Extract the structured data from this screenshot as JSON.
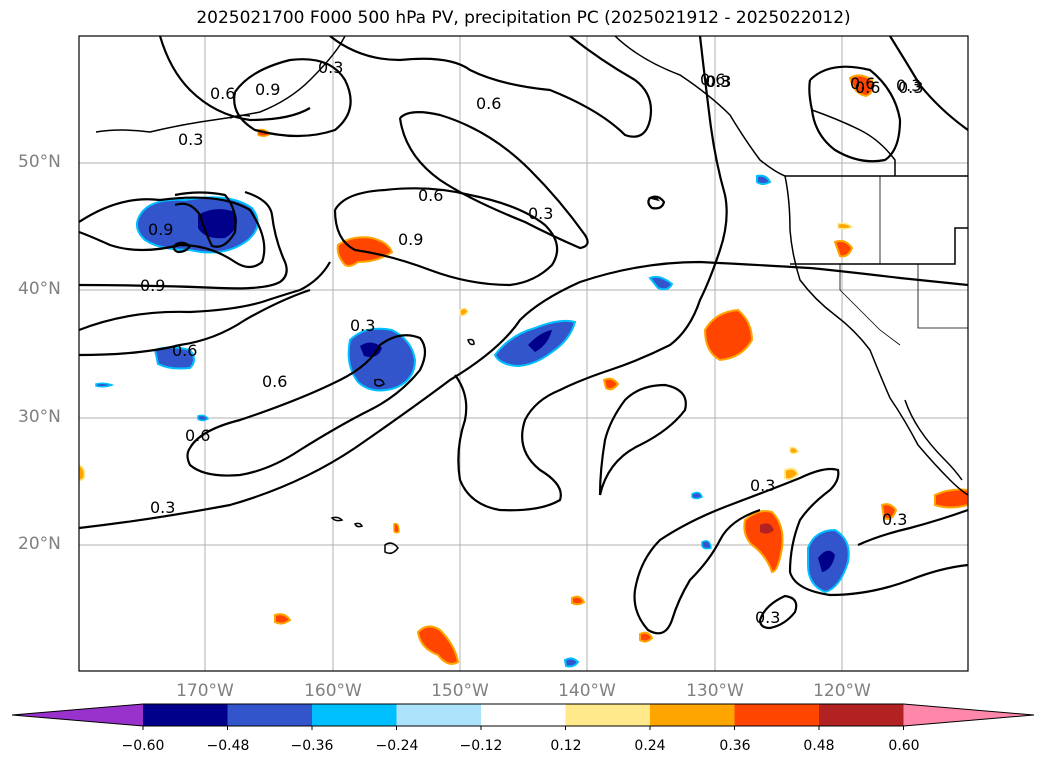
{
  "title": "2025021700 F000 500 hPa PV, precipitation PC (2025021912 - 2025022012)",
  "map": {
    "lat_labels": [
      "50°N",
      "40°N",
      "30°N",
      "20°N"
    ],
    "lon_labels": [
      "170°W",
      "160°W",
      "150°W",
      "140°W",
      "130°W",
      "120°W"
    ],
    "contour_labels": [
      "0.3",
      "0.6",
      "0.9",
      "0.3",
      "0.6",
      "0.9",
      "0.3",
      "0.6",
      "0.9",
      "0.3",
      "0.6",
      "0.6",
      "0.3",
      "0.6",
      "0.9",
      "0.3",
      "0.6",
      "0.3",
      "0.6",
      "0.3",
      "0.3",
      "0.3",
      "0.3",
      "0.6",
      "0.3"
    ],
    "pv_contour_color": "#000000",
    "coastline_color": "#000000",
    "grid_color": "#b0b0b0"
  },
  "colorbar": {
    "tick_labels": [
      "−0.60",
      "−0.48",
      "−0.36",
      "−0.24",
      "−0.12",
      "0.12",
      "0.24",
      "0.36",
      "0.48",
      "0.60"
    ],
    "colors": [
      "#9932CC",
      "#00008B",
      "#3355CC",
      "#00BFFF",
      "#ADE3FA",
      "#FFFFFF",
      "#FFE98A",
      "#FFA500",
      "#FF4500",
      "#B22222",
      "#FF88AA"
    ]
  }
}
